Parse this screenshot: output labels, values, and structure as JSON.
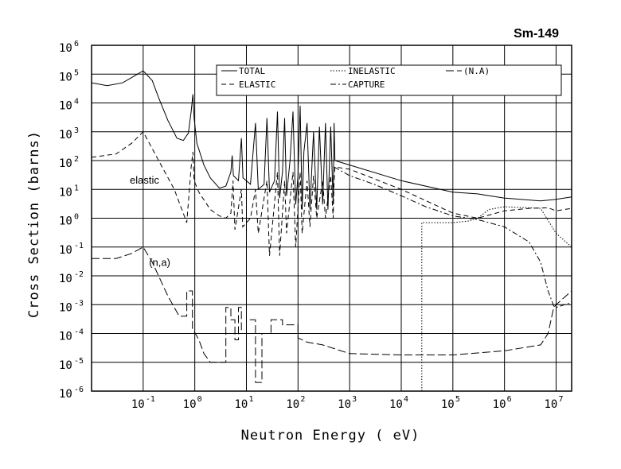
{
  "chart_data": {
    "type": "line",
    "title": "Sm-149",
    "xlabel": "Neutron Energy ( eV)",
    "ylabel": "Cross Section (barns)",
    "x_scale": "log",
    "y_scale": "log",
    "xlim": [
      0.01,
      20000000
    ],
    "ylim": [
      1e-06,
      1000000
    ],
    "grid": true,
    "legend_position": "top-right",
    "x_ticks": [
      {
        "base": "10",
        "exp": "-1",
        "value": 0.1
      },
      {
        "base": "10",
        "exp": "0",
        "value": 1
      },
      {
        "base": "10",
        "exp": "1",
        "value": 10
      },
      {
        "base": "10",
        "exp": "2",
        "value": 100
      },
      {
        "base": "10",
        "exp": "3",
        "value": 1000
      },
      {
        "base": "10",
        "exp": "4",
        "value": 10000
      },
      {
        "base": "10",
        "exp": "5",
        "value": 100000
      },
      {
        "base": "10",
        "exp": "6",
        "value": 1000000
      },
      {
        "base": "10",
        "exp": "7",
        "value": 10000000
      }
    ],
    "y_ticks": [
      {
        "base": "10",
        "exp": "6",
        "value": 1000000
      },
      {
        "base": "10",
        "exp": "5",
        "value": 100000
      },
      {
        "base": "10",
        "exp": "4",
        "value": 10000
      },
      {
        "base": "10",
        "exp": "3",
        "value": 1000
      },
      {
        "base": "10",
        "exp": "2",
        "value": 100
      },
      {
        "base": "10",
        "exp": "1",
        "value": 10
      },
      {
        "base": "10",
        "exp": "0",
        "value": 1
      },
      {
        "base": "10",
        "exp": "-1",
        "value": 0.1
      },
      {
        "base": "10",
        "exp": "-2",
        "value": 0.01
      },
      {
        "base": "10",
        "exp": "-3",
        "value": 0.001
      },
      {
        "base": "10",
        "exp": "-4",
        "value": 0.0001
      },
      {
        "base": "10",
        "exp": "-5",
        "value": 1e-05
      },
      {
        "base": "10",
        "exp": "-6",
        "value": 1e-06
      }
    ],
    "annotations": [
      {
        "text": "elastic",
        "x": 0.055,
        "y": 16
      },
      {
        "text": "(n,a)",
        "x": 0.13,
        "y": 0.022
      }
    ],
    "legend": [
      {
        "label": "TOTAL",
        "dash": "solid"
      },
      {
        "label": "INELASTIC",
        "dash": "dotted"
      },
      {
        "label": "(N.A)",
        "dash": "long-dash"
      },
      {
        "label": "ELASTIC",
        "dash": "dashed"
      },
      {
        "label": "CAPTURE",
        "dash": "dash-dot"
      }
    ],
    "series": [
      {
        "name": "TOTAL",
        "dash": "solid",
        "points": [
          [
            0.01,
            50000
          ],
          [
            0.02,
            40000
          ],
          [
            0.04,
            50000
          ],
          [
            0.07,
            90000
          ],
          [
            0.1,
            130000
          ],
          [
            0.15,
            60000
          ],
          [
            0.2,
            15000
          ],
          [
            0.3,
            2500
          ],
          [
            0.45,
            600
          ],
          [
            0.6,
            500
          ],
          [
            0.75,
            900
          ],
          [
            0.85,
            5000
          ],
          [
            0.92,
            20000
          ],
          [
            0.97,
            3000
          ],
          [
            1.1,
            400
          ],
          [
            1.5,
            70
          ],
          [
            2,
            25
          ],
          [
            3,
            11
          ],
          [
            4,
            13
          ],
          [
            5,
            40
          ],
          [
            5.3,
            150
          ],
          [
            5.6,
            30
          ],
          [
            7,
            20
          ],
          [
            8,
            600
          ],
          [
            8.6,
            25
          ],
          [
            12,
            15
          ],
          [
            15,
            2000
          ],
          [
            17,
            10
          ],
          [
            22,
            15
          ],
          [
            25,
            3000
          ],
          [
            28,
            8
          ],
          [
            35,
            20
          ],
          [
            40,
            5000
          ],
          [
            44,
            5
          ],
          [
            50,
            40
          ],
          [
            55,
            3000
          ],
          [
            60,
            6
          ],
          [
            70,
            100
          ],
          [
            80,
            5000
          ],
          [
            90,
            3
          ],
          [
            100,
            30
          ],
          [
            110,
            8000
          ],
          [
            120,
            2
          ],
          [
            130,
            200
          ],
          [
            150,
            2000
          ],
          [
            170,
            2
          ],
          [
            200,
            1000
          ],
          [
            230,
            2
          ],
          [
            260,
            1500
          ],
          [
            300,
            3
          ],
          [
            340,
            2000
          ],
          [
            380,
            2
          ],
          [
            430,
            1500
          ],
          [
            480,
            3
          ],
          [
            500,
            2000
          ],
          [
            520,
            100
          ],
          [
            1000,
            70
          ],
          [
            10000,
            20
          ],
          [
            100000,
            8
          ],
          [
            300000,
            7
          ],
          [
            1000000,
            5
          ],
          [
            5000000,
            4
          ],
          [
            10000000,
            4.5
          ],
          [
            20000000,
            5.5
          ]
        ]
      },
      {
        "name": "ELASTIC",
        "dash": "dashed",
        "points": [
          [
            0.01,
            130
          ],
          [
            0.03,
            170
          ],
          [
            0.06,
            400
          ],
          [
            0.1,
            1000
          ],
          [
            0.2,
            100
          ],
          [
            0.4,
            10
          ],
          [
            0.7,
            0.7
          ],
          [
            0.85,
            60
          ],
          [
            0.92,
            200
          ],
          [
            0.97,
            20
          ],
          [
            1.2,
            8
          ],
          [
            2,
            2
          ],
          [
            3,
            1.2
          ],
          [
            4,
            1
          ],
          [
            5,
            1.5
          ],
          [
            5.5,
            20
          ],
          [
            6,
            0.4
          ],
          [
            8,
            10
          ],
          [
            8.5,
            0.5
          ],
          [
            12,
            1
          ],
          [
            15,
            10
          ],
          [
            17,
            0.3
          ],
          [
            25,
            20
          ],
          [
            28,
            0.05
          ],
          [
            40,
            40
          ],
          [
            44,
            0.05
          ],
          [
            55,
            20
          ],
          [
            60,
            0.3
          ],
          [
            80,
            40
          ],
          [
            90,
            0.1
          ],
          [
            110,
            40
          ],
          [
            120,
            0.3
          ],
          [
            150,
            20
          ],
          [
            170,
            0.5
          ],
          [
            200,
            30
          ],
          [
            230,
            1
          ],
          [
            300,
            20
          ],
          [
            340,
            1
          ],
          [
            430,
            30
          ],
          [
            480,
            1
          ],
          [
            500,
            20
          ],
          [
            520,
            60
          ],
          [
            1000,
            50
          ],
          [
            10000,
            10
          ],
          [
            100000,
            1.5
          ],
          [
            300000,
            1
          ],
          [
            1000000,
            1.8
          ],
          [
            3000000,
            2.2
          ],
          [
            7000000,
            2.3
          ],
          [
            10000000,
            1.8
          ],
          [
            20000000,
            2.2
          ]
        ]
      },
      {
        "name": "CAPTURE",
        "dash": "dash-dot",
        "points": [
          [
            500,
            60
          ],
          [
            1000,
            30
          ],
          [
            3000,
            15
          ],
          [
            10000,
            6
          ],
          [
            30000,
            2.5
          ],
          [
            100000,
            1.2
          ],
          [
            300000,
            0.9
          ],
          [
            1000000,
            0.5
          ],
          [
            3000000,
            0.15
          ],
          [
            5000000,
            0.03
          ],
          [
            7000000,
            0.003
          ],
          [
            9000000,
            0.0009
          ],
          [
            10000000,
            0.0008
          ],
          [
            20000000,
            0.0012
          ]
        ]
      },
      {
        "name": "INELASTIC",
        "dash": "dotted",
        "points": [
          [
            25000,
            1e-06
          ],
          [
            25000,
            0.7
          ],
          [
            100000,
            0.7
          ],
          [
            200000,
            0.8
          ],
          [
            300000,
            1
          ],
          [
            500000,
            2
          ],
          [
            1000000,
            2.5
          ],
          [
            5000000,
            2.2
          ],
          [
            10000000,
            0.3
          ],
          [
            20000000,
            0.1
          ]
        ]
      },
      {
        "name": "(N.A)",
        "dash": "long-dash",
        "points": [
          [
            0.01,
            0.04
          ],
          [
            0.03,
            0.04
          ],
          [
            0.06,
            0.06
          ],
          [
            0.1,
            0.1
          ],
          [
            0.15,
            0.03
          ],
          [
            0.3,
            0.002
          ],
          [
            0.5,
            0.0004
          ],
          [
            0.7,
            0.0004
          ],
          [
            0.7,
            0.003
          ],
          [
            0.9,
            0.003
          ],
          [
            0.9,
            0.00015
          ],
          [
            1.2,
            6e-05
          ],
          [
            1.5,
            2e-05
          ],
          [
            2,
            1e-05
          ],
          [
            3,
            1e-05
          ],
          [
            4,
            1e-05
          ],
          [
            4,
            0.0008
          ],
          [
            5,
            0.0008
          ],
          [
            5,
            0.0003
          ],
          [
            6,
            0.0003
          ],
          [
            6,
            6e-05
          ],
          [
            7,
            6e-05
          ],
          [
            7,
            0.0008
          ],
          [
            8,
            0.0008
          ],
          [
            8,
            0.0001
          ],
          [
            10,
            0.0001
          ],
          [
            10,
            0.0003
          ],
          [
            15,
            0.0003
          ],
          [
            15,
            2e-06
          ],
          [
            20,
            2e-06
          ],
          [
            20,
            0.0001
          ],
          [
            30,
            0.0001
          ],
          [
            30,
            0.0003
          ],
          [
            50,
            0.0003
          ],
          [
            50,
            0.0002
          ],
          [
            100,
            0.0002
          ],
          [
            100,
            7e-05
          ],
          [
            150,
            5e-05
          ],
          [
            300,
            4e-05
          ],
          [
            500,
            3e-05
          ],
          [
            1000,
            2e-05
          ],
          [
            10000,
            1.8e-05
          ],
          [
            100000,
            1.8e-05
          ],
          [
            1000000,
            2.5e-05
          ],
          [
            5000000,
            4e-05
          ],
          [
            7000000,
            0.0001
          ],
          [
            9000000,
            0.0008
          ],
          [
            10000000,
            0.001
          ],
          [
            20000000,
            0.003
          ]
        ]
      }
    ]
  }
}
